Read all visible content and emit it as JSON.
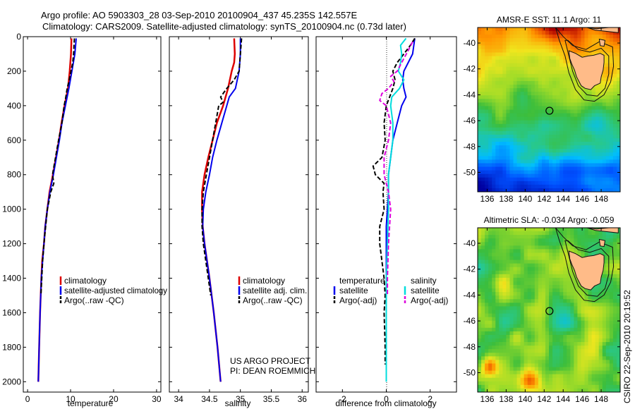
{
  "title_line1": "Argo profile: AO 5903303_28 03-Sep-2010 20100904_437 45.235S 142.557E",
  "title_line2": "Climatology: CARS2009. Satellite-adjusted climatology: synTS_20100904.nc (0.73d later)",
  "side_stamp": "CSIRO 22-Sep-2010 20:19:52",
  "project_line1": "US ARGO PROJECT",
  "project_line2": "PI: DEAN ROEMMICH",
  "colors": {
    "climatology": "#dd0000",
    "satellite": "#0000ee",
    "argo": "#000000",
    "sat_salinity": "#00dddd",
    "argo_salinity": "#dd00dd",
    "land": "#ffbb88"
  },
  "chart_data": [
    {
      "type": "line",
      "name": "temperature-profile",
      "xlabel": "temperature",
      "xlim": [
        -1,
        31
      ],
      "ylim": [
        0,
        2060
      ],
      "ydir": "reverse",
      "xticks": [
        0,
        10,
        20,
        30
      ],
      "yticks": [
        0,
        200,
        400,
        600,
        800,
        1000,
        1200,
        1400,
        1600,
        1800,
        2000
      ],
      "legend": [
        "climatology",
        "satellite-adjusted climatology",
        "Argo(..raw -QC)"
      ],
      "series": [
        {
          "name": "climatology",
          "color": "climatology",
          "dash": false,
          "width": 2.5,
          "depth": [
            10,
            100,
            200,
            300,
            400,
            500,
            600,
            700,
            800,
            900,
            1000,
            1100,
            1200,
            1300,
            1400,
            1600,
            1800,
            2000
          ],
          "values": [
            10.2,
            10.1,
            9.8,
            9.4,
            8.6,
            7.9,
            7.3,
            6.6,
            5.9,
            5.1,
            4.6,
            4.1,
            3.8,
            3.4,
            3.2,
            2.9,
            2.7,
            2.5
          ]
        },
        {
          "name": "satellite",
          "color": "satellite",
          "dash": false,
          "width": 2,
          "depth": [
            10,
            100,
            200,
            300,
            400,
            500,
            600,
            700,
            800,
            900,
            1000,
            1100,
            1200,
            1300,
            1400,
            1600,
            1800,
            2000
          ],
          "values": [
            11.3,
            11.0,
            10.3,
            9.6,
            8.8,
            8.0,
            7.4,
            6.7,
            6.0,
            5.2,
            4.6,
            4.1,
            3.8,
            3.5,
            3.2,
            2.9,
            2.7,
            2.5
          ]
        },
        {
          "name": "argo",
          "color": "argo",
          "dash": true,
          "width": 2,
          "depth": [
            10,
            50,
            100,
            150,
            200,
            250,
            300,
            350,
            400,
            500,
            600,
            700,
            800,
            850,
            900,
            950,
            1000,
            1100,
            1200,
            1300,
            1400,
            1500
          ],
          "values": [
            10.9,
            10.8,
            10.7,
            10.5,
            10.1,
            9.7,
            9.2,
            8.9,
            8.5,
            8.0,
            7.2,
            6.5,
            5.8,
            6.1,
            5.4,
            5.0,
            4.6,
            4.2,
            3.8,
            3.5,
            3.3,
            3.1
          ]
        }
      ]
    },
    {
      "type": "line",
      "name": "salinity-profile",
      "xlabel": "salinity",
      "xlim": [
        33.85,
        36.1
      ],
      "ylim": [
        0,
        2060
      ],
      "ydir": "reverse",
      "xticks": [
        34,
        34.5,
        35,
        35.5,
        36
      ],
      "legend": [
        "climatology",
        "satellite adj. clim.",
        "Argo(..raw -QC)"
      ],
      "series": [
        {
          "name": "climatology",
          "color": "climatology",
          "dash": false,
          "width": 2.5,
          "depth": [
            10,
            100,
            150,
            200,
            300,
            400,
            500,
            600,
            700,
            800,
            900,
            1000,
            1100,
            1200,
            1300,
            1400,
            1600,
            1800,
            2000
          ],
          "values": [
            34.9,
            34.91,
            34.9,
            34.86,
            34.8,
            34.72,
            34.62,
            34.55,
            34.48,
            34.42,
            34.38,
            34.38,
            34.39,
            34.42,
            34.46,
            34.5,
            34.57,
            34.63,
            34.68
          ]
        },
        {
          "name": "satellite",
          "color": "satellite",
          "dash": false,
          "width": 2,
          "depth": [
            10,
            100,
            200,
            300,
            350,
            400,
            500,
            600,
            700,
            800,
            900,
            1000,
            1100,
            1200,
            1300,
            1400,
            1600,
            1800,
            2000
          ],
          "values": [
            35.0,
            35.0,
            34.98,
            34.92,
            34.82,
            34.78,
            34.7,
            34.62,
            34.55,
            34.5,
            34.44,
            34.4,
            34.39,
            34.42,
            34.46,
            34.5,
            34.57,
            34.63,
            34.68
          ]
        },
        {
          "name": "argo",
          "color": "argo",
          "dash": true,
          "width": 2,
          "depth": [
            10,
            100,
            200,
            250,
            300,
            350,
            380,
            400,
            500,
            600,
            700,
            800,
            900,
            1000,
            1100,
            1200,
            1300,
            1400,
            1500
          ],
          "values": [
            35.02,
            35.0,
            34.98,
            34.9,
            34.78,
            34.68,
            34.72,
            34.65,
            34.6,
            34.55,
            34.5,
            34.45,
            34.4,
            34.38,
            34.38,
            34.4,
            34.44,
            34.48,
            34.52
          ]
        }
      ]
    },
    {
      "type": "line",
      "name": "difference-profile",
      "xlabel": "difference from climatology",
      "xlim": [
        -3.2,
        3.2
      ],
      "ylim": [
        0,
        2060
      ],
      "ydir": "reverse",
      "xticks": [
        -2,
        0,
        2
      ],
      "legend_left_title": "temperature",
      "legend_right_title": "salinity",
      "legend_left": [
        "satellite",
        "Argo(-adj)"
      ],
      "legend_right": [
        "satellite",
        "Argo(-adj)"
      ],
      "series": [
        {
          "name": "temperature satellite",
          "color": "satellite",
          "dash": false,
          "width": 2,
          "depth": [
            10,
            100,
            200,
            250,
            300,
            350,
            400,
            500,
            600,
            700,
            800,
            900,
            1000,
            1100,
            1200,
            1300,
            1400,
            1600,
            1800,
            1900
          ],
          "values": [
            1.3,
            1.2,
            0.8,
            0.75,
            0.8,
            0.9,
            0.7,
            0.5,
            0.3,
            0.2,
            0.1,
            0.1,
            0.05,
            0.0,
            0.0,
            0.0,
            0.0,
            0.0,
            0.0,
            0.0
          ]
        },
        {
          "name": "temperature argo",
          "color": "argo",
          "dash": true,
          "width": 2,
          "depth": [
            10,
            50,
            100,
            150,
            200,
            250,
            300,
            400,
            500,
            600,
            700,
            750,
            800,
            850,
            900,
            1000,
            1100,
            1200,
            1300,
            1400,
            1500,
            1600,
            1800,
            1900
          ],
          "values": [
            1.3,
            1.1,
            0.8,
            0.5,
            0.3,
            0.4,
            0.3,
            0.0,
            -0.1,
            -0.05,
            -0.2,
            -0.6,
            -0.5,
            -0.1,
            -0.15,
            -0.1,
            -0.3,
            -0.3,
            -0.2,
            -0.1,
            -0.05,
            -0.1,
            -0.05,
            -0.05
          ]
        },
        {
          "name": "salinity satellite",
          "color": "sat_salinity",
          "dash": false,
          "width": 2,
          "depth": [
            10,
            50,
            100,
            150,
            200,
            250,
            300,
            350,
            400,
            500,
            600,
            700,
            800,
            900,
            1000,
            1200,
            1400,
            1600,
            1800,
            2000
          ],
          "values": [
            0.9,
            0.65,
            0.7,
            0.65,
            0.55,
            0.8,
            0.6,
            0.25,
            0.2,
            0.3,
            0.3,
            0.2,
            0.1,
            0.1,
            0.1,
            0.05,
            0.0,
            0.0,
            0.0,
            0.0
          ]
        },
        {
          "name": "salinity argo",
          "color": "argo_salinity",
          "dash": true,
          "width": 2,
          "depth": [
            30,
            80,
            150,
            200,
            230,
            260,
            300,
            330,
            370,
            400,
            500,
            600,
            700,
            800,
            900,
            1000,
            1200,
            1400,
            1500
          ],
          "values": [
            1.2,
            1.0,
            0.7,
            0.5,
            0.2,
            0.35,
            0.1,
            -0.2,
            -0.3,
            0.0,
            0.2,
            0.1,
            -0.1,
            -0.1,
            0.1,
            0.2,
            0.1,
            0.05,
            0.05
          ]
        }
      ]
    },
    {
      "type": "heatmap",
      "name": "amsr-e-sst-map",
      "title": "AMSR-E SST: 11.1  Argo: 11",
      "xlim": [
        135,
        150
      ],
      "ylim": [
        -51.5,
        -38.8
      ],
      "xticks": [
        136,
        138,
        140,
        142,
        144,
        146,
        148
      ],
      "yticks": [
        -40,
        -42,
        -44,
        -46,
        -48,
        -50
      ],
      "marker": [
        142.557,
        -45.235
      ],
      "palette": "sst"
    },
    {
      "type": "heatmap",
      "name": "altimetric-sla-map",
      "title": "Altimetric SLA: -0.034  Argo: -0.059",
      "xlim": [
        135,
        150
      ],
      "ylim": [
        -51.5,
        -38.8
      ],
      "xticks": [
        136,
        138,
        140,
        142,
        144,
        146,
        148
      ],
      "yticks": [
        -40,
        -42,
        -44,
        -46,
        -48,
        -50
      ],
      "marker": [
        142.557,
        -45.235
      ],
      "palette": "sla"
    }
  ]
}
